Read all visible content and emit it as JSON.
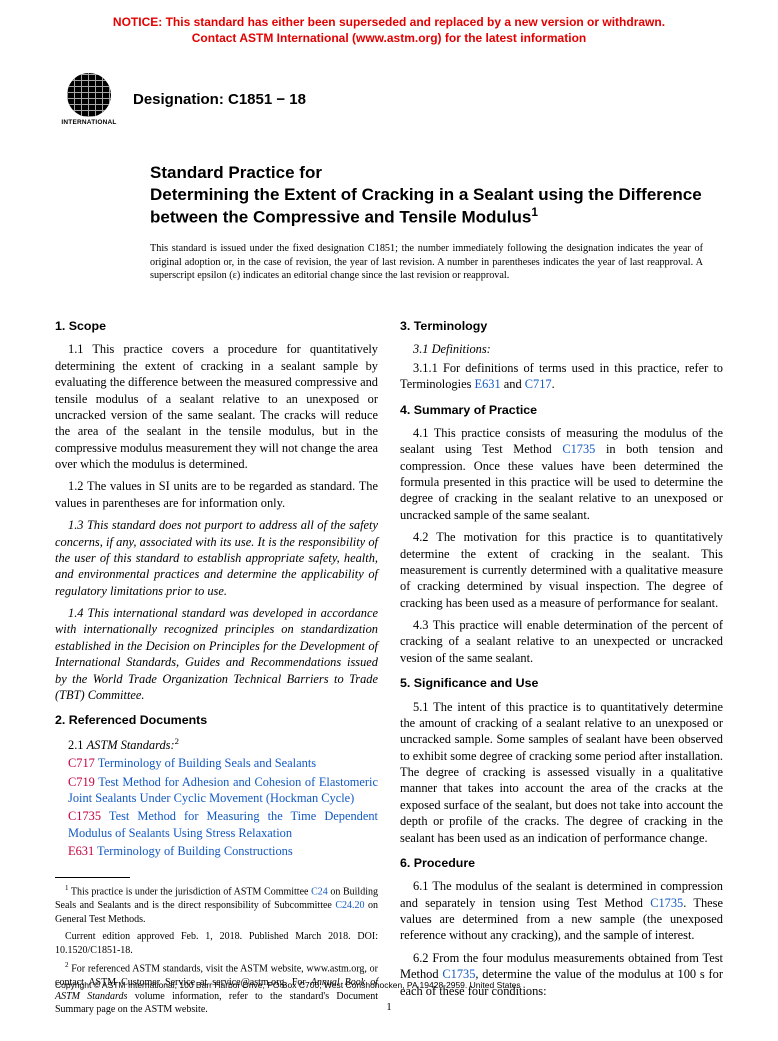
{
  "notice": {
    "line1": "NOTICE: This standard has either been superseded and replaced by a new version or withdrawn.",
    "line2": "Contact ASTM International (www.astm.org) for the latest information"
  },
  "logo": {
    "org": "INTERNATIONAL"
  },
  "designation": "Designation: C1851 − 18",
  "title_lead": "Standard Practice for",
  "title_main": "Determining the Extent of Cracking in a Sealant using the Difference between the Compressive and Tensile Modulus",
  "title_sup": "1",
  "issue_note": "This standard is issued under the fixed designation C1851; the number immediately following the designation indicates the year of original adoption or, in the case of revision, the year of last revision. A number in parentheses indicates the year of last reapproval. A superscript epsilon (ε) indicates an editorial change since the last revision or reapproval.",
  "left": {
    "scope_head": "1. Scope",
    "p11": "1.1 This practice covers a procedure for quantitatively determining the extent of cracking in a sealant sample by evaluating the difference between the measured compressive and tensile modulus of a sealant relative to an unexposed or uncracked version of the same sealant. The cracks will reduce the area of the sealant in the tensile modulus, but in the compressive modulus measurement they will not change the area over which the modulus is determined.",
    "p12": "1.2 The values in SI units are to be regarded as standard. The values in parentheses are for information only.",
    "p13": "1.3 This standard does not purport to address all of the safety concerns, if any, associated with its use. It is the responsibility of the user of this standard to establish appropriate safety, health, and environmental practices and determine the applicability of regulatory limitations prior to use.",
    "p14": "1.4 This international standard was developed in accordance with internationally recognized principles on standardization established in the Decision on Principles for the Development of International Standards, Guides and Recommendations issued by the World Trade Organization Technical Barriers to Trade (TBT) Committee.",
    "ref_head": "2. Referenced Documents",
    "ref_lead_a": "2.1 ",
    "ref_lead_b": "ASTM Standards:",
    "ref_sup": "2",
    "refs": [
      {
        "code": "C717",
        "text": " Terminology of Building Seals and Sealants"
      },
      {
        "code": "C719",
        "text": " Test Method for Adhesion and Cohesion of Elastomeric Joint Sealants Under Cyclic Movement (Hockman Cycle)"
      },
      {
        "code": "C1735",
        "text": " Test Method for Measuring the Time Dependent Modulus of Sealants Using Stress Relaxation"
      },
      {
        "code": "E631",
        "text": " Terminology of Building Constructions"
      }
    ],
    "fn1_a": " This practice is under the jurisdiction of ASTM Committee ",
    "fn1_b": "C24",
    "fn1_c": " on Building Seals and Sealants and is the direct responsibility of Subcommittee ",
    "fn1_d": "C24.20",
    "fn1_e": " on General Test Methods.",
    "fn1f": "Current edition approved Feb. 1, 2018. Published March 2018. DOI: 10.1520/C1851-18.",
    "fn2_a": " For referenced ASTM standards, visit the ASTM website, www.astm.org, or contact ASTM Customer Service at service@astm.org. For ",
    "fn2_b": "Annual Book of ASTM Standards",
    "fn2_c": " volume information, refer to the standard's Document Summary page on the ASTM website."
  },
  "right": {
    "term_head": "3. Terminology",
    "p31": "3.1 Definitions:",
    "p311_a": "3.1.1 For definitions of terms used in this practice, refer to Terminologies ",
    "p311_b": "E631",
    "p311_c": " and ",
    "p311_d": "C717",
    "p311_e": ".",
    "sum_head": "4. Summary of Practice",
    "p41_a": "4.1 This practice consists of measuring the modulus of the sealant using Test Method ",
    "p41_b": "C1735",
    "p41_c": " in both tension and compression. Once these values have been determined the formula presented in this practice will be used to determine the degree of cracking in the sealant relative to an unexposed or uncracked sample of the same sealant.",
    "p42": "4.2 The motivation for this practice is to quantitatively determine the extent of cracking in the sealant. This measurement is currently determined with a qualitative measure of cracking determined by visual inspection. The degree of cracking has been used as a measure of performance for sealant.",
    "p43": "4.3 This practice will enable determination of the percent of cracking of a sealant relative to an unexpected or uncracked vesion of the same sealant.",
    "sig_head": "5. Significance and Use",
    "p51": "5.1 The intent of this practice is to quantitatively determine the amount of cracking of a sealant relative to an unexposed or uncracked sample. Some samples of sealant have been observed to exhibit some degree of cracking some period after installation. The degree of cracking is assessed visually in a qualitative manner that takes into account the area of the cracks at the exposed surface of the sealant, but does not take into account the depth or profile of the cracks. The degree of cracking in the sealant has been used as an indication of performance change.",
    "proc_head": "6. Procedure",
    "p61_a": "6.1 The modulus of the sealant is determined in compression and separately in tension using Test Method ",
    "p61_b": "C1735",
    "p61_c": ". These values are determined from a new sample (the unexposed reference without any cracking), and the sample of interest.",
    "p62_a": "6.2 From the four modulus measurements obtained from Test Method ",
    "p62_b": "C1735",
    "p62_c": ", determine the value of the modulus at 100 s for each of these four conditions:"
  },
  "copyright": "Copyright © ASTM International, 100 Barr Harbor Drive, PO Box C700, West Conshohocken, PA 19428-2959. United States",
  "pagenum": "1"
}
